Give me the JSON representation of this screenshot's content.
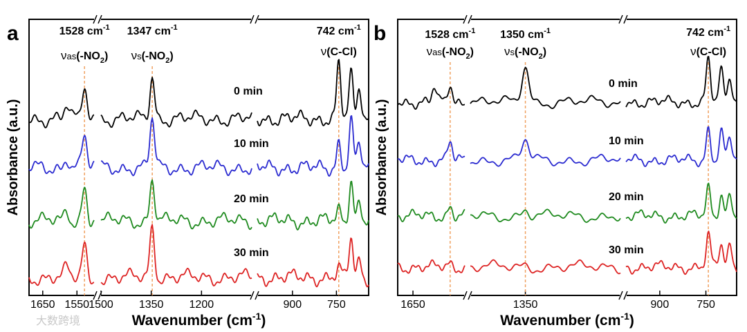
{
  "watermark": "大数跨境",
  "chart_data": [
    {
      "type": "line",
      "panel": "a",
      "xlabel": "Wavenumber (cm",
      "xlabel_sup": "-1",
      "xlabel_tail": ")",
      "ylabel": "Absorbance (a.u.)",
      "x_reversed": true,
      "x_segments": [
        {
          "range": [
            1690,
            1500
          ],
          "ticks": [
            1650,
            1550
          ],
          "tick_labels": [
            "1650",
            "1550"
          ]
        },
        {
          "range": [
            1500,
            1050
          ],
          "ticks": [
            1500,
            1350,
            1200
          ],
          "tick_labels": [
            "1500",
            "1350",
            "1200"
          ]
        },
        {
          "range": [
            1020,
            640
          ],
          "ticks": [
            900,
            750
          ],
          "tick_labels": [
            "900",
            "750"
          ]
        }
      ],
      "annotations": [
        {
          "wavenumber": 1528,
          "label": "1528 cm",
          "sup": "-1",
          "mode_prefix": "ν",
          "mode_sub": "as",
          "mode_group": "(-NO",
          "mode_group_sub": "2",
          "mode_close": ")"
        },
        {
          "wavenumber": 1347,
          "label": "1347 cm",
          "sup": "-1",
          "mode_prefix": "ν",
          "mode_sub": "s",
          "mode_group": "(-NO",
          "mode_group_sub": "2",
          "mode_close": ")"
        },
        {
          "wavenumber": 742,
          "label": "742 cm",
          "sup": "-1",
          "mode_prefix": "ν",
          "mode_sub": "",
          "mode_group": "(C-Cl",
          "mode_group_sub": "",
          "mode_close": ")"
        }
      ],
      "series": [
        {
          "name": "0 min",
          "color": "#000000",
          "peaks": [
            {
              "x": 1528,
              "h": 0.8
            },
            {
              "x": 1347,
              "h": 1.0
            },
            {
              "x": 742,
              "h": 1.3
            },
            {
              "x": 700,
              "h": 1.0
            },
            {
              "x": 672,
              "h": 0.8
            },
            {
              "x": 1580,
              "h": 0.3
            }
          ]
        },
        {
          "name": "10 min",
          "color": "#2a2ad0",
          "peaks": [
            {
              "x": 1528,
              "h": 0.75
            },
            {
              "x": 1347,
              "h": 1.15
            },
            {
              "x": 742,
              "h": 0.6
            },
            {
              "x": 700,
              "h": 1.1
            },
            {
              "x": 672,
              "h": 0.55
            },
            {
              "x": 1580,
              "h": 0.25
            }
          ]
        },
        {
          "name": "20 min",
          "color": "#1e8a1e",
          "peaks": [
            {
              "x": 1528,
              "h": 0.8
            },
            {
              "x": 1347,
              "h": 1.0
            },
            {
              "x": 742,
              "h": 0.25
            },
            {
              "x": 700,
              "h": 1.0
            },
            {
              "x": 672,
              "h": 0.45
            },
            {
              "x": 1580,
              "h": 0.25
            }
          ]
        },
        {
          "name": "30 min",
          "color": "#dd2222",
          "peaks": [
            {
              "x": 1528,
              "h": 0.75
            },
            {
              "x": 1347,
              "h": 1.2
            },
            {
              "x": 742,
              "h": 0.2
            },
            {
              "x": 700,
              "h": 0.95
            },
            {
              "x": 672,
              "h": 0.4
            },
            {
              "x": 1580,
              "h": 0.2
            }
          ]
        }
      ]
    },
    {
      "type": "line",
      "panel": "b",
      "xlabel": "Wavenumber (cm",
      "xlabel_sup": "-1",
      "xlabel_tail": ")",
      "ylabel": "Absorbance (a.u.)",
      "x_reversed": true,
      "x_segments": [
        {
          "range": [
            1700,
            1480
          ],
          "ticks": [
            1650
          ],
          "tick_labels": [
            "1650"
          ]
        },
        {
          "range": [
            1460,
            1160
          ],
          "ticks": [
            1350
          ],
          "tick_labels": [
            "1350"
          ]
        },
        {
          "range": [
            1010,
            650
          ],
          "ticks": [
            900,
            750
          ],
          "tick_labels": [
            "900",
            "750"
          ]
        }
      ],
      "annotations": [
        {
          "wavenumber": 1528,
          "label": "1528 cm",
          "sup": "-1",
          "mode_prefix": "ν",
          "mode_sub": "as",
          "mode_group": "(-NO",
          "mode_group_sub": "2",
          "mode_close": ")"
        },
        {
          "wavenumber": 1350,
          "label": "1350 cm",
          "sup": "-1",
          "mode_prefix": "ν",
          "mode_sub": "s",
          "mode_group": "(-NO",
          "mode_group_sub": "2",
          "mode_close": ")"
        },
        {
          "wavenumber": 742,
          "label": "742 cm",
          "sup": "-1",
          "mode_prefix": "ν",
          "mode_sub": "",
          "mode_group": "(C-Cl",
          "mode_group_sub": "",
          "mode_close": ")"
        }
      ],
      "series": [
        {
          "name": "0 min",
          "color": "#000000",
          "peaks": [
            {
              "x": 1528,
              "h": 0.55
            },
            {
              "x": 1580,
              "h": 0.45
            },
            {
              "x": 1350,
              "h": 1.1
            },
            {
              "x": 742,
              "h": 1.3
            },
            {
              "x": 700,
              "h": 0.9
            },
            {
              "x": 672,
              "h": 0.8
            }
          ]
        },
        {
          "name": "10 min",
          "color": "#2a2ad0",
          "peaks": [
            {
              "x": 1528,
              "h": 0.55
            },
            {
              "x": 1350,
              "h": 0.6
            },
            {
              "x": 742,
              "h": 0.95
            },
            {
              "x": 700,
              "h": 0.85
            },
            {
              "x": 672,
              "h": 0.65
            }
          ]
        },
        {
          "name": "20 min",
          "color": "#1e8a1e",
          "peaks": [
            {
              "x": 1528,
              "h": 0.3
            },
            {
              "x": 1350,
              "h": 0.2
            },
            {
              "x": 742,
              "h": 0.85
            },
            {
              "x": 700,
              "h": 0.7
            },
            {
              "x": 672,
              "h": 0.65
            }
          ]
        },
        {
          "name": "30 min",
          "color": "#dd2222",
          "peaks": [
            {
              "x": 1528,
              "h": 0.1
            },
            {
              "x": 1350,
              "h": 0.05
            },
            {
              "x": 742,
              "h": 0.95
            },
            {
              "x": 700,
              "h": 0.7
            },
            {
              "x": 672,
              "h": 0.65
            }
          ]
        }
      ]
    }
  ]
}
